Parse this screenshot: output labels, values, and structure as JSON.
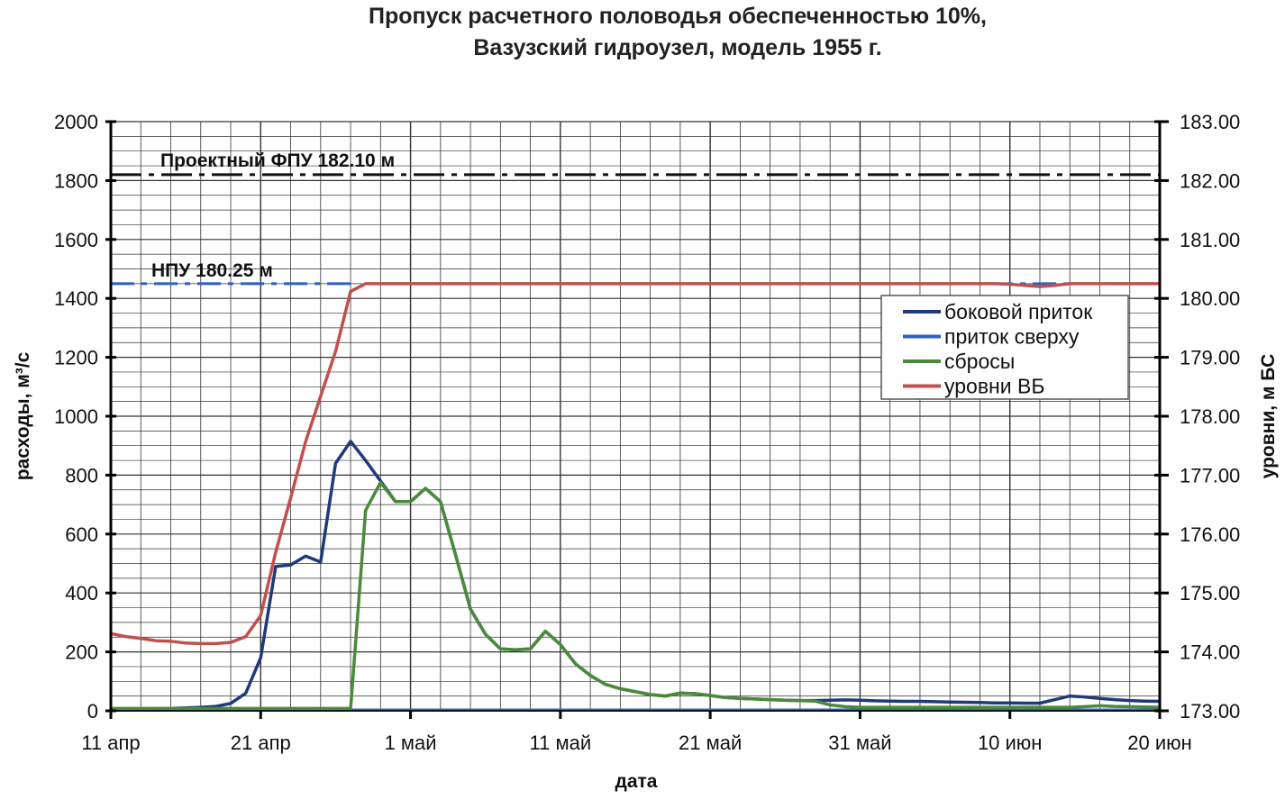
{
  "chart_data": {
    "type": "line",
    "title": [
      "Пропуск расчетного половодья обеспеченностью 10%,",
      "Вазузский гидроузел, модель 1955 г."
    ],
    "xlabel": "дата",
    "ylabel_left": "расходы, м³/с",
    "ylabel_right": "уровни, м БС",
    "x_ticks": [
      "11 апр",
      "21 апр",
      "1 май",
      "11 май",
      "21 май",
      "31 май",
      "10 июн",
      "20 июн"
    ],
    "y_left_ticks": [
      "0",
      "200",
      "400",
      "600",
      "800",
      "1000",
      "1200",
      "1400",
      "1600",
      "1800",
      "2000"
    ],
    "y_right_ticks": [
      "173.00",
      "174.00",
      "175.00",
      "176.00",
      "177.00",
      "178.00",
      "179.00",
      "180.00",
      "181.00",
      "182.00",
      "183.00"
    ],
    "ylim_left": [
      0,
      2000
    ],
    "ylim_right": [
      173,
      183
    ],
    "grid": true,
    "legend_placement": "right",
    "reference_lines": [
      {
        "label": "Проектный ФПУ 182.10 м",
        "value": 182.1,
        "axis": "right",
        "color": "#111111"
      },
      {
        "label": "НПУ 180.25 м",
        "value": 180.25,
        "axis": "right",
        "color": "#2f5fc0"
      }
    ],
    "series": [
      {
        "name": "боковой приток",
        "axis": "left",
        "color": "#1f3a7a",
        "values": [
          5,
          5,
          6,
          7,
          8,
          10,
          12,
          15,
          25,
          60,
          180,
          490,
          495,
          525,
          505,
          840,
          915,
          850,
          780,
          710,
          710,
          755,
          710,
          530,
          345,
          260,
          210,
          207,
          210,
          270,
          225,
          160,
          120,
          90,
          75,
          65,
          55,
          50,
          60,
          58,
          52,
          45,
          42,
          40,
          38,
          36,
          35,
          35,
          36,
          37,
          36,
          34,
          33,
          32,
          32,
          31,
          30,
          29,
          28,
          27,
          27,
          26,
          26,
          38,
          50,
          47,
          42,
          38,
          35,
          33,
          32
        ]
      },
      {
        "name": "приток сверху",
        "axis": "left",
        "color": "#2f5fc0",
        "values": [
          2,
          2,
          2,
          2,
          2,
          2,
          2,
          2,
          2,
          2,
          2,
          2,
          2,
          2,
          2,
          2,
          2,
          2,
          2,
          2,
          2,
          2,
          2,
          2,
          2,
          2,
          2,
          2,
          2,
          2,
          2,
          2,
          2,
          2,
          2,
          2,
          2,
          2,
          2,
          2,
          2,
          2,
          2,
          2,
          2,
          2,
          2,
          2,
          2,
          2,
          2,
          2,
          2,
          2,
          2,
          2,
          2,
          2,
          2,
          2,
          2,
          2,
          2,
          2,
          2,
          2,
          2,
          2,
          2,
          2,
          2
        ]
      },
      {
        "name": "сбросы",
        "axis": "left",
        "color": "#4a8a3a",
        "values": [
          8,
          8,
          8,
          8,
          8,
          8,
          8,
          8,
          8,
          8,
          8,
          8,
          8,
          8,
          8,
          8,
          8,
          680,
          775,
          710,
          710,
          755,
          710,
          530,
          345,
          260,
          210,
          207,
          210,
          270,
          225,
          160,
          120,
          90,
          75,
          65,
          55,
          50,
          60,
          58,
          52,
          45,
          42,
          40,
          38,
          36,
          35,
          33,
          20,
          14,
          12,
          12,
          12,
          12,
          12,
          12,
          12,
          12,
          12,
          12,
          12,
          12,
          12,
          12,
          12,
          14,
          17,
          15,
          14,
          13,
          12
        ]
      },
      {
        "name": "уровни ВБ",
        "axis": "right",
        "color": "#c0504d",
        "values": [
          174.31,
          174.26,
          174.23,
          174.19,
          174.18,
          174.15,
          174.14,
          174.14,
          174.16,
          174.26,
          174.62,
          175.69,
          176.61,
          177.57,
          178.34,
          179.1,
          180.12,
          180.25,
          180.25,
          180.25,
          180.25,
          180.25,
          180.25,
          180.25,
          180.25,
          180.25,
          180.25,
          180.25,
          180.25,
          180.25,
          180.25,
          180.25,
          180.25,
          180.25,
          180.25,
          180.25,
          180.25,
          180.25,
          180.25,
          180.25,
          180.25,
          180.25,
          180.25,
          180.25,
          180.25,
          180.25,
          180.25,
          180.25,
          180.25,
          180.25,
          180.25,
          180.25,
          180.25,
          180.25,
          180.25,
          180.25,
          180.25,
          180.25,
          180.25,
          180.25,
          180.24,
          180.22,
          180.2,
          180.22,
          180.25,
          180.25,
          180.25,
          180.25,
          180.25,
          180.25,
          180.25
        ]
      }
    ]
  }
}
